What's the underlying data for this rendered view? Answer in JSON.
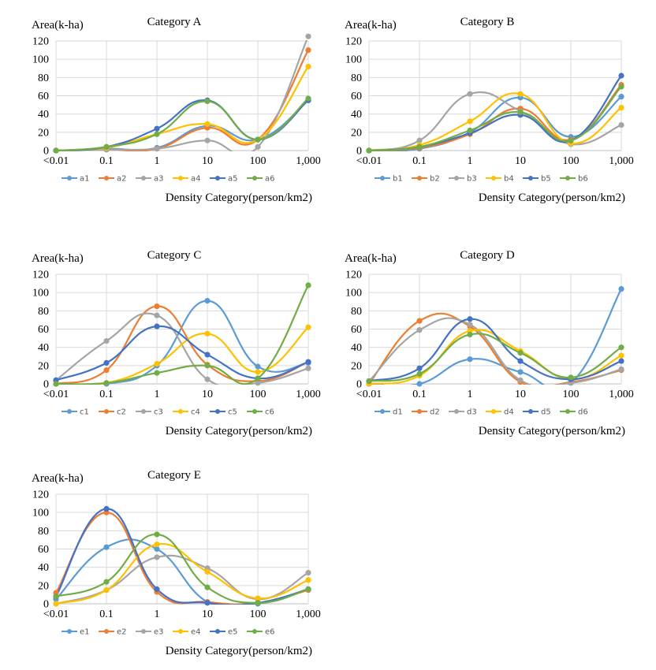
{
  "chart_data": [
    {
      "type": "line",
      "title": "Category A",
      "ylabel": "Area(k-ha)",
      "xlabel": "Density Category(person/km2)",
      "categories": [
        "<0.01",
        "0.1",
        "1",
        "10",
        "100",
        "1,000"
      ],
      "ylim": [
        0,
        120
      ],
      "yticks": [
        0,
        20,
        40,
        60,
        80,
        100,
        120
      ],
      "grid": true,
      "legend": "bottom",
      "series": [
        {
          "name": "a1",
          "color": "#5B9BD5",
          "values": [
            0,
            2,
            3,
            27,
            12,
            55
          ]
        },
        {
          "name": "a2",
          "color": "#ED7D31",
          "values": [
            0,
            1,
            2,
            25,
            12,
            110
          ]
        },
        {
          "name": "a3",
          "color": "#A5A5A5",
          "values": [
            0,
            1,
            2,
            11,
            4,
            125
          ]
        },
        {
          "name": "a4",
          "color": "#FFC000",
          "values": [
            0,
            3,
            18,
            29,
            12,
            92
          ]
        },
        {
          "name": "a5",
          "color": "#4472C4",
          "values": [
            0,
            4,
            24,
            55,
            12,
            55
          ]
        },
        {
          "name": "a6",
          "color": "#70AD47",
          "values": [
            0,
            4,
            18,
            54,
            12,
            57
          ]
        }
      ]
    },
    {
      "type": "line",
      "title": "Category B",
      "ylabel": "Area(k-ha)",
      "xlabel": "Density Category(person/km2)",
      "categories": [
        "<0.01",
        "0.1",
        "1",
        "10",
        "100",
        "1,000"
      ],
      "ylim": [
        0,
        120
      ],
      "yticks": [
        0,
        20,
        40,
        60,
        80,
        100,
        120
      ],
      "grid": true,
      "legend": "bottom",
      "series": [
        {
          "name": "b1",
          "color": "#5B9BD5",
          "values": [
            0,
            2,
            20,
            58,
            15,
            59
          ]
        },
        {
          "name": "b2",
          "color": "#ED7D31",
          "values": [
            0,
            3,
            18,
            46,
            12,
            72
          ]
        },
        {
          "name": "b3",
          "color": "#A5A5A5",
          "values": [
            0,
            11,
            62,
            43,
            7,
            28
          ]
        },
        {
          "name": "b4",
          "color": "#FFC000",
          "values": [
            0,
            6,
            32,
            62,
            8,
            47
          ]
        },
        {
          "name": "b5",
          "color": "#4472C4",
          "values": [
            0,
            4,
            19,
            39,
            11,
            82
          ]
        },
        {
          "name": "b6",
          "color": "#70AD47",
          "values": [
            0,
            4,
            22,
            42,
            11,
            70
          ]
        }
      ]
    },
    {
      "type": "line",
      "title": "Category C",
      "ylabel": "Area(k-ha)",
      "xlabel": "Density Category(person/km2)",
      "categories": [
        "<0.01",
        "0.1",
        "1",
        "10",
        "100",
        "1,000"
      ],
      "ylim": [
        0,
        120
      ],
      "yticks": [
        0,
        20,
        40,
        60,
        80,
        100,
        120
      ],
      "grid": true,
      "legend": "bottom",
      "series": [
        {
          "name": "c1",
          "color": "#5B9BD5",
          "values": [
            0,
            0,
            20,
            91,
            19,
            23
          ]
        },
        {
          "name": "c2",
          "color": "#ED7D31",
          "values": [
            0,
            15,
            85,
            21,
            3,
            24
          ]
        },
        {
          "name": "c3",
          "color": "#A5A5A5",
          "values": [
            4,
            47,
            75,
            5,
            1,
            17
          ]
        },
        {
          "name": "c4",
          "color": "#FFC000",
          "values": [
            0,
            1,
            22,
            55,
            13,
            62
          ]
        },
        {
          "name": "c5",
          "color": "#4472C4",
          "values": [
            4,
            23,
            63,
            32,
            6,
            24
          ]
        },
        {
          "name": "c6",
          "color": "#70AD47",
          "values": [
            0,
            1,
            12,
            20,
            6,
            108
          ]
        }
      ]
    },
    {
      "type": "line",
      "title": "Category D",
      "ylabel": "Area(k-ha)",
      "xlabel": "Density Category(person/km2)",
      "categories": [
        "<0.01",
        "0.1",
        "1",
        "10",
        "100",
        "1,000"
      ],
      "ylim": [
        0,
        120
      ],
      "yticks": [
        0,
        20,
        40,
        60,
        80,
        100,
        120
      ],
      "grid": true,
      "legend": "bottom",
      "series": [
        {
          "name": "d1",
          "color": "#5B9BD5",
          "values": [
            0,
            0,
            27,
            13,
            1,
            104
          ]
        },
        {
          "name": "d2",
          "color": "#ED7D31",
          "values": [
            0,
            69,
            63,
            2,
            2,
            15
          ]
        },
        {
          "name": "d3",
          "color": "#A5A5A5",
          "values": [
            3,
            59,
            65,
            4,
            1,
            16
          ]
        },
        {
          "name": "d4",
          "color": "#FFC000",
          "values": [
            0,
            9,
            58,
            36,
            5,
            31
          ]
        },
        {
          "name": "d5",
          "color": "#4472C4",
          "values": [
            3,
            17,
            71,
            25,
            5,
            25
          ]
        },
        {
          "name": "d6",
          "color": "#70AD47",
          "values": [
            3,
            11,
            54,
            34,
            7,
            40
          ]
        }
      ]
    },
    {
      "type": "line",
      "title": "Category E",
      "ylabel": "Area(k-ha)",
      "xlabel": "Density Category(person/km2)",
      "categories": [
        "<0.01",
        "0.1",
        "1",
        "10",
        "100",
        "1,000"
      ],
      "ylim": [
        0,
        120
      ],
      "yticks": [
        0,
        20,
        40,
        60,
        80,
        100,
        120
      ],
      "grid": true,
      "legend": "bottom",
      "series": [
        {
          "name": "e1",
          "color": "#5B9BD5",
          "values": [
            5,
            62,
            60,
            2,
            0,
            16
          ]
        },
        {
          "name": "e2",
          "color": "#ED7D31",
          "values": [
            12,
            100,
            13,
            2,
            1,
            15
          ]
        },
        {
          "name": "e3",
          "color": "#A5A5A5",
          "values": [
            0,
            15,
            51,
            39,
            5,
            34
          ]
        },
        {
          "name": "e4",
          "color": "#FFC000",
          "values": [
            0,
            15,
            65,
            35,
            6,
            26
          ]
        },
        {
          "name": "e5",
          "color": "#4472C4",
          "values": [
            8,
            104,
            16,
            1,
            1,
            16
          ]
        },
        {
          "name": "e6",
          "color": "#70AD47",
          "values": [
            8,
            24,
            76,
            18,
            1,
            16
          ]
        }
      ]
    }
  ]
}
